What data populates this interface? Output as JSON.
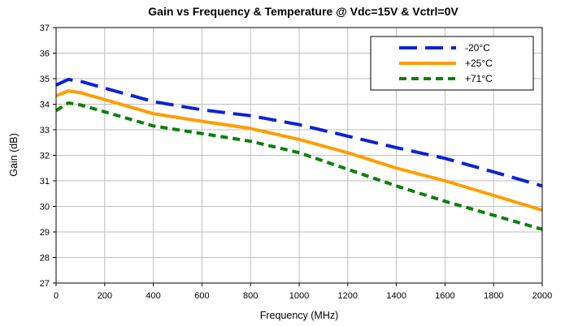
{
  "chart_data": {
    "type": "line",
    "title": "Gain vs Frequency & Temperature @ Vdc=15V & Vctrl=0V",
    "xlabel": "Frequency (MHz)",
    "ylabel": "Gain (dB)",
    "xlim": [
      0,
      2000
    ],
    "ylim": [
      27,
      37
    ],
    "xticks": [
      0,
      200,
      400,
      600,
      800,
      1000,
      1200,
      1400,
      1600,
      1800,
      2000
    ],
    "yticks": [
      27,
      28,
      29,
      30,
      31,
      32,
      33,
      34,
      35,
      36,
      37
    ],
    "grid": true,
    "legend_position": "top-right",
    "series": [
      {
        "name": "-20°C",
        "color": "#0a22d6",
        "dash": "long-dash",
        "x": [
          0,
          50,
          100,
          200,
          400,
          600,
          800,
          1000,
          1200,
          1400,
          1600,
          1800,
          2000
        ],
        "y": [
          34.75,
          34.97,
          34.9,
          34.63,
          34.1,
          33.78,
          33.55,
          33.2,
          32.75,
          32.3,
          31.88,
          31.35,
          30.8
        ]
      },
      {
        "name": "+25°C",
        "color": "#ff9d00",
        "dash": "solid",
        "x": [
          0,
          50,
          100,
          200,
          400,
          600,
          800,
          1000,
          1200,
          1400,
          1600,
          1800,
          2000
        ],
        "y": [
          34.33,
          34.52,
          34.45,
          34.18,
          33.63,
          33.33,
          33.05,
          32.62,
          32.1,
          31.5,
          31.0,
          30.43,
          29.85
        ]
      },
      {
        "name": "+71°C",
        "color": "#0b7f0b",
        "dash": "short-dash",
        "x": [
          0,
          50,
          100,
          200,
          400,
          600,
          800,
          1000,
          1200,
          1400,
          1600,
          1800,
          2000
        ],
        "y": [
          33.75,
          34.05,
          33.97,
          33.7,
          33.15,
          32.85,
          32.55,
          32.1,
          31.45,
          30.8,
          30.2,
          29.65,
          29.1
        ]
      }
    ]
  }
}
